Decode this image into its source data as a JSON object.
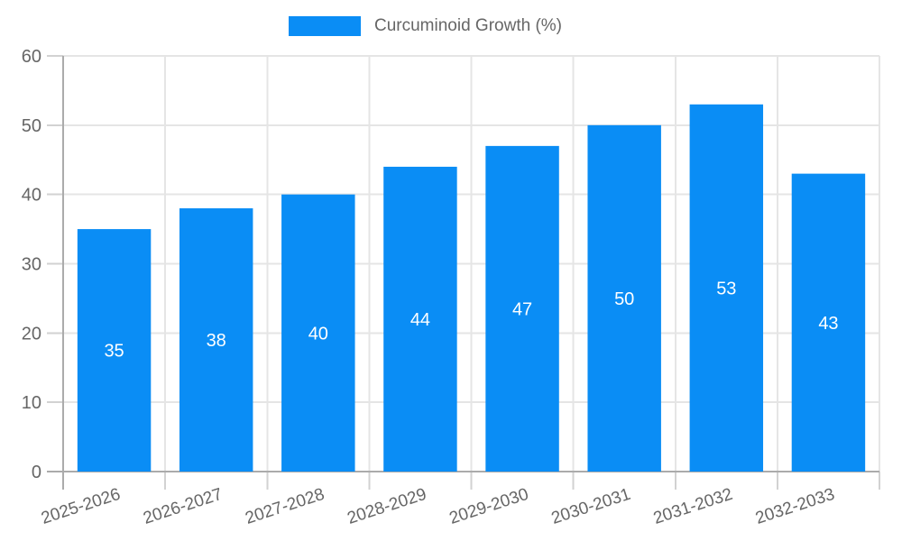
{
  "legend": {
    "label": "Curcuminoid Growth (%)"
  },
  "chart_data": {
    "type": "bar",
    "title": "",
    "xlabel": "",
    "ylabel": "",
    "legend_position": "top",
    "grid": true,
    "categories": [
      "2025-2026",
      "2026-2027",
      "2027-2028",
      "2028-2029",
      "2029-2030",
      "2030-2031",
      "2031-2032",
      "2032-2033"
    ],
    "series": [
      {
        "name": "Curcuminoid Growth (%)",
        "values": [
          35,
          38,
          40,
          44,
          47,
          50,
          53,
          43
        ]
      }
    ],
    "values": [
      35,
      38,
      40,
      44,
      47,
      50,
      53,
      43
    ],
    "value_labels": [
      35,
      38,
      40,
      44,
      47,
      50,
      53,
      43
    ],
    "y_ticks": [
      0,
      10,
      20,
      30,
      40,
      50,
      60
    ],
    "ylim": [
      0,
      60
    ],
    "colors": {
      "bar": "#0a8df5",
      "value_label": "#ffffff",
      "axis_text": "#666666",
      "grid_line": "#e5e5e5",
      "tick_line": "#d2d2d2",
      "axis_line": "#ababab",
      "background": "#ffffff"
    }
  }
}
